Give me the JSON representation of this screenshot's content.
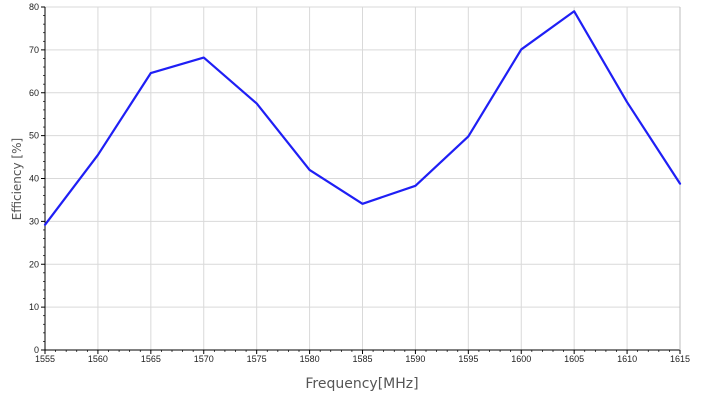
{
  "chart_data": {
    "type": "line",
    "xlabel": "Frequency[MHz]",
    "ylabel": "Efficiency [%]",
    "xlim": [
      1555,
      1615
    ],
    "ylim": [
      0,
      80
    ],
    "x_ticks": [
      "1555",
      "1560",
      "1565",
      "1570",
      "1575",
      "1580",
      "1585",
      "1590",
      "1595",
      "1600",
      "1605",
      "1610",
      "1615"
    ],
    "y_ticks": [
      "0",
      "10",
      "20",
      "30",
      "40",
      "50",
      "60",
      "70",
      "80"
    ],
    "grid": true,
    "legend": "none",
    "series": [
      {
        "color": "#1f1ff5",
        "x": [
          1555,
          1560,
          1565,
          1570,
          1575,
          1580,
          1585,
          1590,
          1595,
          1600,
          1605,
          1610,
          1615
        ],
        "y": [
          29.2,
          45.5,
          64.6,
          68.2,
          57.5,
          42.0,
          34.1,
          38.3,
          49.8,
          70.1,
          79.0,
          57.8,
          38.8
        ]
      }
    ]
  }
}
